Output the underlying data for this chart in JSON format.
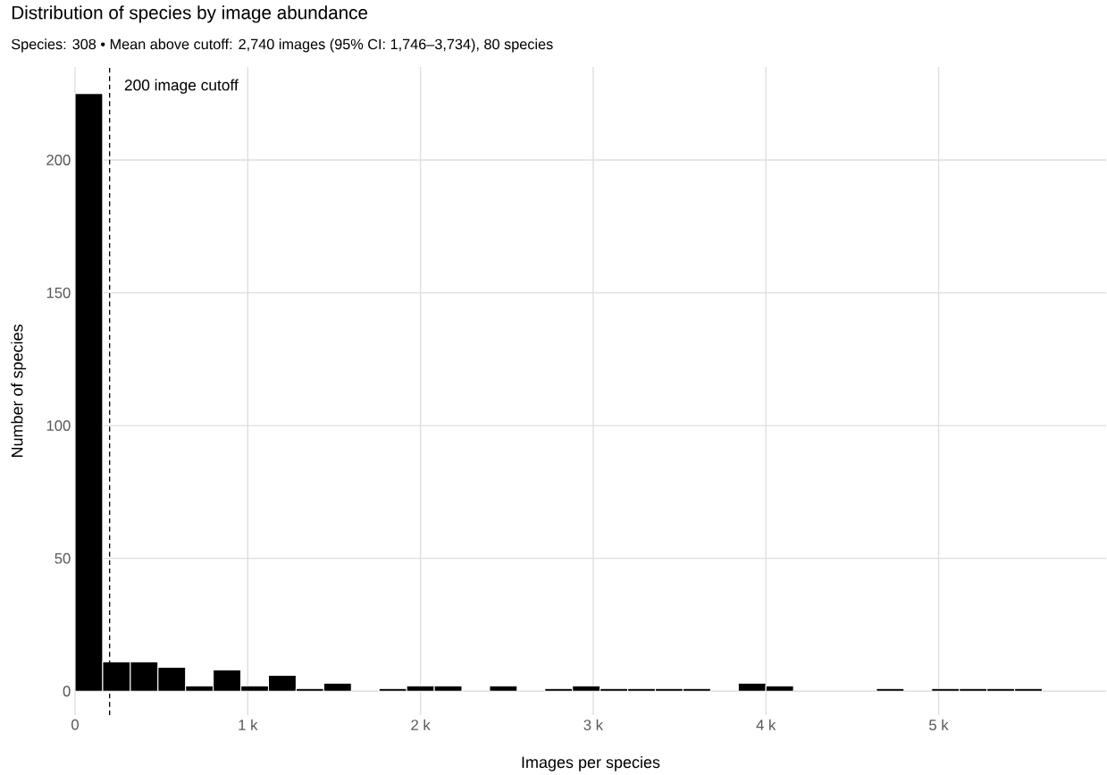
{
  "chart_data": {
    "type": "histogram",
    "title": "Distribution of species by image abundance",
    "subtitle": "Species: 308  •  Mean above cutoff: 2,740 images (95% CI: 1,746–3,734), 80 species",
    "xlabel": "Images per species",
    "ylabel": "Number of species",
    "bins": [
      0,
      160,
      320,
      480,
      640,
      800,
      960,
      1120,
      1280,
      1440,
      1600,
      1760,
      1920,
      2080,
      2240,
      2400,
      2560,
      2720,
      2880,
      3040,
      3200,
      3360,
      3520,
      3680,
      3840,
      4000,
      4160,
      4320,
      4480,
      4640,
      4800,
      4960,
      5120,
      5280,
      5440,
      5600,
      5760,
      5920
    ],
    "values": [
      225,
      11,
      11,
      9,
      2,
      8,
      2,
      6,
      1,
      3,
      0,
      1,
      2,
      2,
      0,
      2,
      0,
      1,
      2,
      1,
      1,
      1,
      1,
      0,
      3,
      2,
      0,
      0,
      0,
      1,
      0,
      1,
      1,
      1,
      1,
      0,
      0
    ],
    "color": "#000000",
    "xlim": [
      0,
      5970
    ],
    "ylim": [
      -9,
      235
    ],
    "xticks": [
      0,
      {
        "value": 1000,
        "label": "1 k"
      },
      {
        "value": 2000,
        "label": "2 k"
      },
      {
        "value": 3000,
        "label": "3 k"
      },
      {
        "value": 4000,
        "label": "4 k"
      },
      {
        "value": 5000,
        "label": "5 k"
      }
    ],
    "yticks": [
      0,
      50,
      100,
      150,
      200
    ],
    "grid": true,
    "ref_lines": [
      {
        "axis": "x",
        "value": 200,
        "label": "200 image cutoff",
        "line_style": "dashed",
        "color": "#000000"
      }
    ]
  }
}
